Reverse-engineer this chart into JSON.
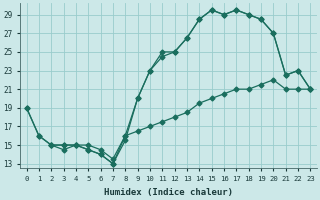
{
  "xlabel": "Humidex (Indice chaleur)",
  "bg_color": "#cce8e8",
  "line_color": "#1a6e5e",
  "grid_color": "#99cccc",
  "xlim": [
    -0.5,
    23.5
  ],
  "ylim": [
    12.5,
    30.2
  ],
  "xticks": [
    0,
    1,
    2,
    3,
    4,
    5,
    6,
    7,
    8,
    9,
    10,
    11,
    12,
    13,
    14,
    15,
    16,
    17,
    18,
    19,
    20,
    21,
    22,
    23
  ],
  "yticks": [
    13,
    15,
    17,
    19,
    21,
    23,
    25,
    27,
    29
  ],
  "line1_x": [
    0,
    1,
    2,
    3,
    4,
    5,
    6,
    7,
    8,
    9,
    10,
    11,
    12,
    13,
    14,
    15,
    16,
    17,
    18,
    19,
    20,
    21,
    22,
    23
  ],
  "line1_y": [
    19,
    16,
    15,
    15,
    15,
    14.5,
    14,
    13,
    15.5,
    20,
    23,
    24.5,
    25,
    26.5,
    28.5,
    29.5,
    29,
    29.5,
    29,
    28.5,
    27,
    22.5,
    23,
    21
  ],
  "line2_x": [
    0,
    1,
    2,
    3,
    4,
    5,
    6,
    7,
    8,
    9,
    10,
    11,
    12,
    13,
    14,
    15,
    16,
    17,
    18,
    19,
    20,
    21,
    22,
    23
  ],
  "line2_y": [
    19,
    16,
    15,
    14.5,
    15,
    15,
    14.5,
    13.5,
    16,
    16.5,
    17,
    17.5,
    18,
    18.5,
    19.5,
    20,
    20.5,
    21,
    21,
    21.5,
    22,
    21,
    21,
    21
  ],
  "line3_x": [
    2,
    3,
    4,
    5,
    6,
    7,
    8,
    9,
    10,
    11,
    12,
    13,
    14,
    15,
    16,
    17,
    18,
    19,
    20,
    21,
    22,
    23
  ],
  "line3_y": [
    15,
    15,
    15,
    14.5,
    14,
    13,
    16,
    20,
    23,
    25,
    25,
    26.5,
    28.5,
    29.5,
    29,
    29.5,
    29,
    28.5,
    27,
    22.5,
    23,
    21
  ]
}
